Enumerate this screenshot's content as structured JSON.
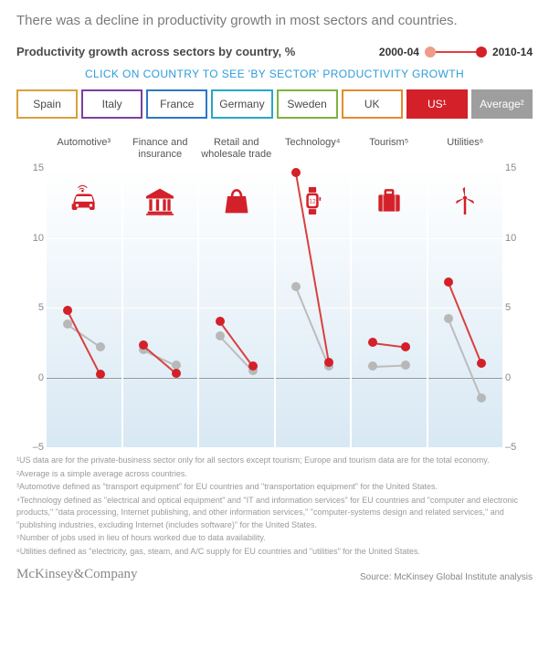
{
  "headline": "There was a decline in productivity growth in most sectors and countries.",
  "subtitle": "Productivity growth across sectors by country, %",
  "legend": {
    "period1_label": "2000-04",
    "period2_label": "2010-14",
    "dot1_color": "#f19a8a",
    "line_color": "#e53e3e",
    "dot2_color": "#d32029"
  },
  "instruction": "CLICK ON COUNTRY TO SEE 'BY SECTOR' PRODUCTIVITY GROWTH",
  "tabs": [
    {
      "label": "Spain",
      "border": "#d9a03b",
      "text": "#4a4a4a",
      "selected": false
    },
    {
      "label": "Italy",
      "border": "#7b3f9e",
      "text": "#4a4a4a",
      "selected": false
    },
    {
      "label": "France",
      "border": "#2b78c5",
      "text": "#4a4a4a",
      "selected": false
    },
    {
      "label": "Germany",
      "border": "#2aa6c9",
      "text": "#4a4a4a",
      "selected": false
    },
    {
      "label": "Sweden",
      "border": "#7fb23f",
      "text": "#4a4a4a",
      "selected": false
    },
    {
      "label": "UK",
      "border": "#e68a2e",
      "text": "#4a4a4a",
      "selected": false
    },
    {
      "label": "US¹",
      "border": "#d32029",
      "text": "#ffffff",
      "bg": "#d32029",
      "selected": true
    },
    {
      "label": "Average²",
      "border": "#9e9e9e",
      "text": "#ffffff",
      "bg": "#9e9e9e",
      "selected": false
    }
  ],
  "chart": {
    "type": "panel-slope",
    "y_min": -5,
    "y_max": 15,
    "y_ticks": [
      -5,
      0,
      5,
      10,
      15
    ],
    "gridline_color": "#ffffff",
    "zero_line_color": "#999999",
    "panel_bg_gradient_top": "rgba(200,225,240,0.0)",
    "panel_bg_gradient_bottom": "rgba(195,220,238,0.65)",
    "x_positions_pct": [
      28,
      72
    ],
    "series_colors": {
      "us": {
        "dot": "#d32029",
        "line": "#d9403f"
      },
      "avg": {
        "dot": "#b8b8b8",
        "line": "#bcbcbc"
      }
    },
    "sectors": [
      {
        "key": "automotive",
        "label": "Automotive³",
        "icon": "car",
        "us": [
          4.8,
          0.2
        ],
        "avg": [
          3.8,
          2.2
        ]
      },
      {
        "key": "finance",
        "label": "Finance and insurance",
        "icon": "bank",
        "us": [
          2.3,
          0.3
        ],
        "avg": [
          2.0,
          0.9
        ]
      },
      {
        "key": "retail",
        "label": "Retail and wholesale trade",
        "icon": "bag",
        "us": [
          4.0,
          0.8
        ],
        "avg": [
          3.0,
          0.5
        ]
      },
      {
        "key": "tech",
        "label": "Technology⁴",
        "icon": "watch",
        "us": [
          14.7,
          1.1
        ],
        "avg": [
          6.5,
          0.8
        ]
      },
      {
        "key": "tourism",
        "label": "Tourism⁵",
        "icon": "suitcase",
        "us": [
          2.5,
          2.2
        ],
        "avg": [
          0.8,
          0.9
        ]
      },
      {
        "key": "utilities",
        "label": "Utilities⁶",
        "icon": "turbine",
        "us": [
          6.8,
          1.0
        ],
        "avg": [
          4.2,
          -1.5
        ]
      }
    ]
  },
  "footnotes": [
    "¹US data are for the private-business sector only for all sectors except tourism; Europe and tourism data are for the total economy.",
    "²Average is a simple average across countries.",
    "³Automotive defined as \"transport equipment\" for EU countries and \"transportation equipment\" for the United States.",
    "⁴Technology defined as \"electrical and optical equipment\" and \"IT and information services\" for EU countries and \"computer and electronic products,\" \"data processing, Internet publishing, and other information services,\" \"computer-systems design and related services,\" and \"publishing industries, excluding Internet (includes software)\" for the United States.",
    "⁵Number of jobs used in lieu of hours worked due to data availability.",
    "⁶Utilities defined as \"electricity, gas, steam, and A/C supply for EU countries and \"utilities\" for the United States."
  ],
  "brand": "McKinsey&Company",
  "source": "Source: McKinsey Global Institute analysis",
  "icons_color": "#d32029"
}
